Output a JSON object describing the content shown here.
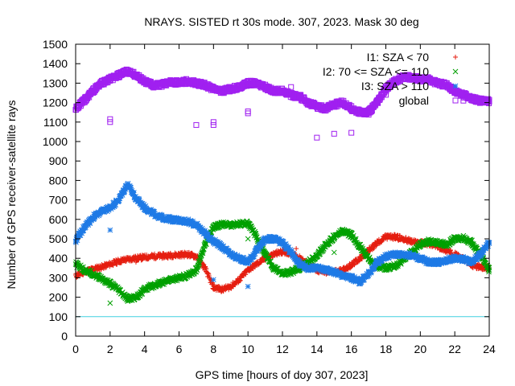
{
  "chart_data": {
    "type": "scatter",
    "title": "NRAYS. SISTED rt 30s mode. 307, 2023. Mask 30 deg",
    "xlabel": "GPS time [hours of doy 307, 2023]",
    "ylabel": "Number of GPS receiver-satellite rays",
    "xlim": [
      0,
      24
    ],
    "ylim": [
      0,
      1500
    ],
    "xticks": [
      0,
      2,
      4,
      6,
      8,
      10,
      12,
      14,
      16,
      18,
      20,
      22,
      24
    ],
    "yticks": [
      0,
      100,
      200,
      300,
      400,
      500,
      600,
      700,
      800,
      900,
      1000,
      1100,
      1200,
      1300,
      1400,
      1500
    ],
    "grid": false,
    "legend_position": "top-right",
    "reference_line": {
      "y": 100,
      "color": "#40d0e0"
    },
    "series": [
      {
        "name": "I1: SZA < 70",
        "label": "I1: SZA < 70",
        "marker": "+",
        "color": "#e51e10",
        "x": [
          0,
          0.5,
          1,
          1.5,
          2,
          2.5,
          3,
          3.5,
          4,
          4.5,
          5,
          5.5,
          6,
          6.5,
          7,
          7.5,
          8,
          8.5,
          9,
          9.5,
          10,
          10.5,
          11,
          11.5,
          12,
          12.5,
          13,
          13.5,
          14,
          14.5,
          15,
          15.5,
          16,
          16.5,
          17,
          17.5,
          18,
          18.5,
          19,
          19.5,
          20,
          20.5,
          21,
          21.5,
          22,
          22.5,
          23,
          23.5,
          24
        ],
        "y": [
          310,
          330,
          345,
          355,
          370,
          385,
          395,
          400,
          405,
          410,
          412,
          415,
          418,
          420,
          410,
          350,
          250,
          240,
          255,
          290,
          340,
          370,
          400,
          420,
          435,
          425,
          400,
          370,
          340,
          330,
          330,
          340,
          365,
          400,
          440,
          480,
          510,
          510,
          500,
          485,
          480,
          475,
          460,
          440,
          420,
          395,
          365,
          355,
          350
        ],
        "outliers": [
          {
            "x": 3.5,
            "y": 380
          },
          {
            "x": 12.8,
            "y": 450
          },
          {
            "x": 17.3,
            "y": 450
          }
        ]
      },
      {
        "name": "I2: 70 <= SZA <= 110",
        "label": "I2: 70 <= SZA <= 110",
        "marker": "x",
        "color": "#00a000",
        "x": [
          0,
          0.5,
          1,
          1.5,
          2,
          2.5,
          3,
          3.5,
          4,
          4.5,
          5,
          5.5,
          6,
          6.5,
          7,
          7.5,
          8,
          8.5,
          9,
          9.5,
          10,
          10.5,
          11,
          11.5,
          12,
          12.5,
          13,
          13.5,
          14,
          14.5,
          15,
          15.5,
          16,
          16.5,
          17,
          17.5,
          18,
          18.5,
          19,
          19.5,
          20,
          20.5,
          21,
          21.5,
          22,
          22.5,
          23,
          23.5,
          24
        ],
        "y": [
          370,
          340,
          320,
          295,
          270,
          235,
          190,
          200,
          240,
          260,
          275,
          290,
          300,
          310,
          340,
          470,
          560,
          575,
          570,
          575,
          580,
          510,
          420,
          350,
          320,
          330,
          350,
          380,
          410,
          470,
          510,
          540,
          520,
          460,
          400,
          360,
          350,
          360,
          390,
          430,
          470,
          490,
          480,
          470,
          500,
          505,
          480,
          420,
          340
        ],
        "outliers": [
          {
            "x": 2,
            "y": 170
          },
          {
            "x": 10,
            "y": 500
          },
          {
            "x": 15,
            "y": 430
          }
        ]
      },
      {
        "name": "I3: SZA > 110",
        "label": "I3: SZA > 110",
        "marker": "*",
        "color": "#1e7ae6",
        "x": [
          0,
          0.5,
          1,
          1.5,
          2,
          2.5,
          3,
          3.5,
          4,
          4.5,
          5,
          5.5,
          6,
          6.5,
          7,
          7.5,
          8,
          8.5,
          9,
          9.5,
          10,
          10.5,
          11,
          11.5,
          12,
          12.5,
          13,
          13.5,
          14,
          14.5,
          15,
          15.5,
          16,
          16.5,
          17,
          17.5,
          18,
          18.5,
          19,
          19.5,
          20,
          20.5,
          21,
          21.5,
          22,
          22.5,
          23,
          23.5,
          24
        ],
        "y": [
          490,
          560,
          610,
          640,
          660,
          700,
          780,
          710,
          660,
          630,
          610,
          600,
          595,
          590,
          570,
          530,
          490,
          460,
          420,
          400,
          380,
          440,
          500,
          500,
          480,
          430,
          370,
          350,
          350,
          340,
          330,
          310,
          300,
          280,
          320,
          380,
          410,
          420,
          420,
          415,
          400,
          380,
          380,
          390,
          400,
          395,
          380,
          420,
          480
        ],
        "outliers": [
          {
            "x": 2,
            "y": 545
          },
          {
            "x": 8,
            "y": 290
          },
          {
            "x": 10,
            "y": 255
          }
        ]
      },
      {
        "name": "global",
        "label": "global",
        "marker": "square",
        "color": "#a020f0",
        "x": [
          0,
          0.5,
          1,
          1.5,
          2,
          2.5,
          3,
          3.5,
          4,
          4.5,
          5,
          5.5,
          6,
          6.5,
          7,
          7.5,
          8,
          8.5,
          9,
          9.5,
          10,
          10.5,
          11,
          11.5,
          12,
          12.5,
          13,
          13.5,
          14,
          14.5,
          15,
          15.5,
          16,
          16.5,
          17,
          17.5,
          18,
          18.5,
          19,
          19.5,
          20,
          20.5,
          21,
          21.5,
          22,
          22.5,
          23,
          23.5,
          24
        ],
        "y": [
          1170,
          1210,
          1260,
          1300,
          1320,
          1340,
          1360,
          1340,
          1310,
          1290,
          1290,
          1310,
          1300,
          1310,
          1300,
          1290,
          1270,
          1260,
          1270,
          1280,
          1300,
          1300,
          1280,
          1260,
          1260,
          1240,
          1230,
          1200,
          1180,
          1170,
          1190,
          1200,
          1170,
          1150,
          1150,
          1200,
          1270,
          1310,
          1330,
          1330,
          1320,
          1320,
          1300,
          1290,
          1260,
          1240,
          1220,
          1210,
          1205
        ],
        "outliers": [
          {
            "x": 2,
            "y": 1100
          },
          {
            "x": 2,
            "y": 1115
          },
          {
            "x": 7,
            "y": 1085
          },
          {
            "x": 8,
            "y": 1085
          },
          {
            "x": 8,
            "y": 1100
          },
          {
            "x": 10,
            "y": 1145
          },
          {
            "x": 10,
            "y": 1155
          },
          {
            "x": 14,
            "y": 1020
          },
          {
            "x": 15,
            "y": 1040
          },
          {
            "x": 16,
            "y": 1045
          },
          {
            "x": 17.5,
            "y": 1200
          },
          {
            "x": 18,
            "y": 1240
          },
          {
            "x": 22.5,
            "y": 1210
          },
          {
            "x": 12.5,
            "y": 1280
          },
          {
            "x": 13,
            "y": 1240
          }
        ]
      }
    ]
  }
}
